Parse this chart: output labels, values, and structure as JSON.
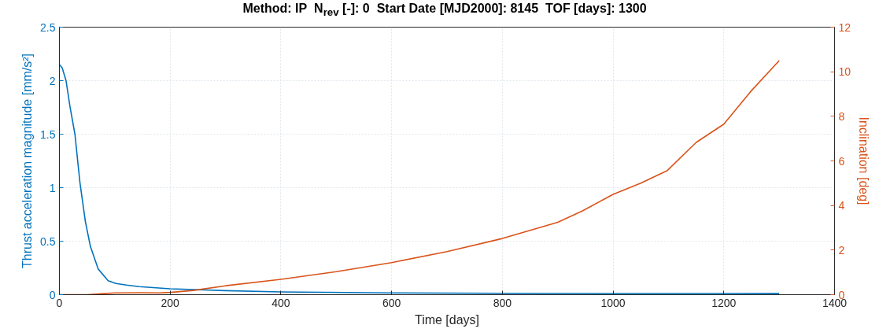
{
  "chart_data": {
    "type": "line",
    "title": "Method: IP   N$_{rev}$ [-]: 0   Start Date [MJD2000]: 8145   TOF [days]: 1300",
    "xlabel": "Time [days]",
    "ylabel": "Thrust acceleration magnitude [mm/s²]",
    "y2label": "Inclination [deg]",
    "xlim": [
      0,
      1400
    ],
    "xticks": [
      0,
      200,
      400,
      600,
      800,
      1000,
      1200,
      1400
    ],
    "ylim": [
      0,
      2.5
    ],
    "yticks": [
      0,
      0.5,
      1,
      1.5,
      2,
      2.5
    ],
    "y2lim": [
      0,
      12
    ],
    "y2ticks": [
      0,
      2,
      4,
      6,
      8,
      10,
      12
    ],
    "grid": true,
    "series": [
      {
        "color": "#0072bd",
        "x": [
          0,
          5,
          12,
          19,
          28,
          37,
          47,
          56,
          70,
          88,
          102,
          121,
          144,
          200,
          300,
          400,
          600,
          800,
          1000,
          1200,
          1300
        ],
        "values": [
          2.15,
          2.12,
          2.0,
          1.76,
          1.5,
          1.05,
          0.68,
          0.45,
          0.24,
          0.13,
          0.105,
          0.09,
          0.075,
          0.055,
          0.038,
          0.026,
          0.017,
          0.013,
          0.011,
          0.011,
          0.012
        ]
      },
      {
        "color": "#d95319",
        "axis": "y2",
        "x": [
          0,
          50,
          80,
          100,
          150,
          180,
          200,
          242,
          300,
          400,
          500,
          600,
          700,
          800,
          900,
          944,
          1000,
          1050,
          1098,
          1150,
          1200,
          1248,
          1300
        ],
        "values": [
          0,
          0,
          0.05,
          0.08,
          0.09,
          0.08,
          0.1,
          0.19,
          0.4,
          0.69,
          1.03,
          1.44,
          1.93,
          2.52,
          3.25,
          3.75,
          4.5,
          5.0,
          5.57,
          6.83,
          7.65,
          9.1,
          10.5
        ]
      }
    ]
  }
}
